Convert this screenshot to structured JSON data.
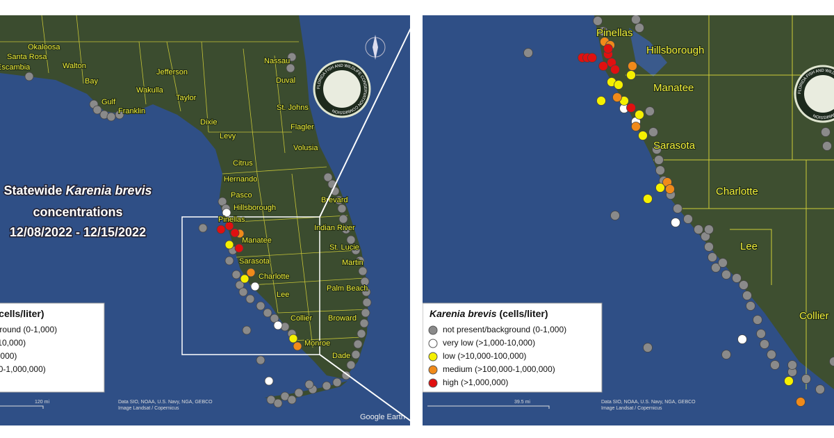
{
  "left_map": {
    "title": [
      "Statewide ",
      "Karenia brevis",
      "concentrations"
    ],
    "date_range": "12/08/2022 - 12/15/2022",
    "counties": [
      "Okaloosa",
      "Santa Rosa",
      "Escambia",
      "Walton",
      "Bay",
      "Gulf",
      "Franklin",
      "Jefferson",
      "Wakulla",
      "Taylor",
      "Dixie",
      "Levy",
      "Nassau",
      "Duval",
      "St. Johns",
      "Flagler",
      "Volusia",
      "Citrus",
      "Hernando",
      "Pasco",
      "Hillsborough",
      "Pinellas",
      "Manatee",
      "Sarasota",
      "Charlotte",
      "Lee",
      "Collier",
      "Monroe",
      "Dade",
      "Broward",
      "Palm Beach",
      "Martin",
      "St. Lucie",
      "Indian River",
      "Brevard"
    ],
    "logo_text": "FLORIDA FISH AND WILDLIFE CONSERVATION COMMISSION",
    "scale": "120 mi",
    "watermark": "Google Earth"
  },
  "right_map": {
    "counties": [
      "Pinellas",
      "Hillsborough",
      "Manatee",
      "Sarasota",
      "Charlotte",
      "Lee",
      "Collier"
    ],
    "scale": "39.5 mi"
  },
  "legend": {
    "title": "Karenia brevis",
    "unit": "(cells/liter)",
    "items": [
      {
        "label": "not present/background (0-1,000)",
        "color": "#8a8a8a"
      },
      {
        "label": "very low (>1,000-10,000)",
        "color": "#ffffff"
      },
      {
        "label": "low (>10,000-100,000)",
        "color": "#f5f000"
      },
      {
        "label": "medium (>100,000-1,000,000)",
        "color": "#f08a1a"
      },
      {
        "label": "high (>1,000,000)",
        "color": "#e01010"
      }
    ]
  },
  "attribution": {
    "data": "Data SIO, NOAA, U.S. Navy, NGA, GEBCO",
    "image": "Image Landsat / Copernicus"
  }
}
